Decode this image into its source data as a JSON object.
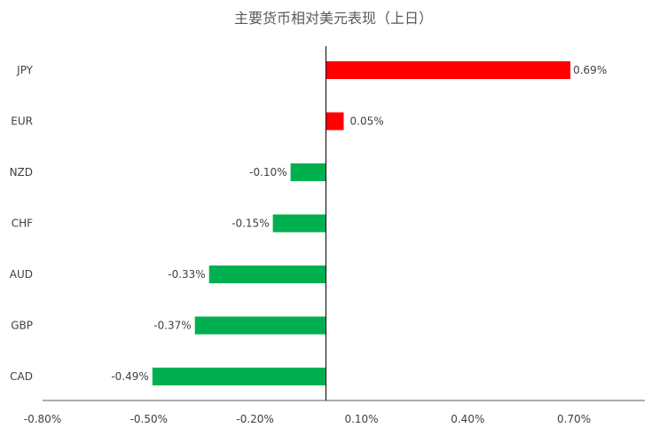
{
  "chart_data": {
    "type": "bar",
    "orientation": "horizontal",
    "title": "主要货币相对美元表现（上日）",
    "categories": [
      "JPY",
      "EUR",
      "NZD",
      "CHF",
      "AUD",
      "GBP",
      "CAD"
    ],
    "values": [
      0.69,
      0.05,
      -0.1,
      -0.15,
      -0.33,
      -0.37,
      -0.49
    ],
    "value_labels": [
      "0.69%",
      "0.05%",
      "-0.10%",
      "-0.15%",
      "-0.33%",
      "-0.37%",
      "-0.49%"
    ],
    "xlim": [
      -0.8,
      0.9
    ],
    "x_ticks": [
      -0.8,
      -0.5,
      -0.2,
      0.1,
      0.4,
      0.7
    ],
    "x_tick_labels": [
      "-0.80%",
      "-0.50%",
      "-0.20%",
      "0.10%",
      "0.40%",
      "0.70%"
    ],
    "colors": {
      "positive": "#ff0000",
      "negative": "#00b050",
      "axis": "#000000"
    },
    "grid": false,
    "legend": "none"
  }
}
